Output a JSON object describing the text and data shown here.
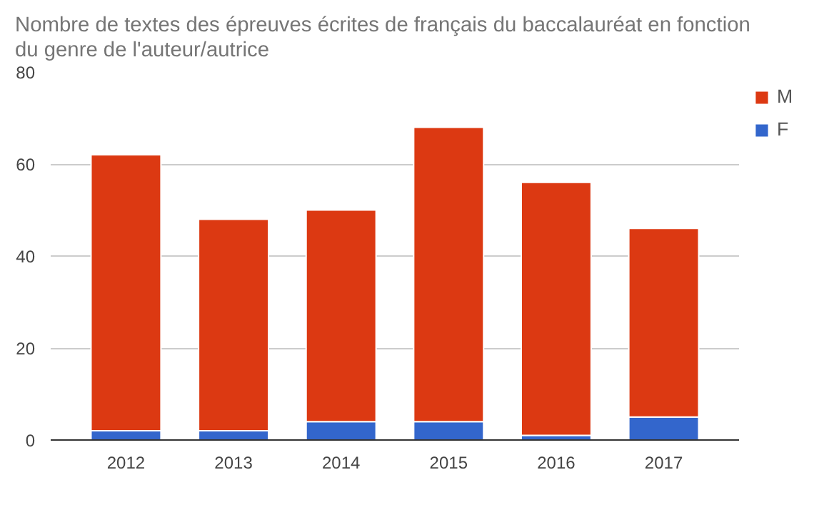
{
  "chart_data": {
    "type": "bar",
    "title": "Nombre de textes des épreuves écrites de français du baccalauréat en fonction\ndu genre de l'auteur/autrice",
    "categories": [
      "2012",
      "2013",
      "2014",
      "2015",
      "2016",
      "2017"
    ],
    "stacked": true,
    "series": [
      {
        "name": "F",
        "color": "#3366cc",
        "values": [
          2,
          2,
          4,
          4,
          1,
          5
        ]
      },
      {
        "name": "M",
        "color": "#dc3912",
        "values": [
          60,
          46,
          46,
          64,
          55,
          41
        ]
      }
    ],
    "ylim": [
      0,
      80
    ],
    "yticks": [
      0,
      20,
      40,
      60,
      80
    ],
    "grid": "y",
    "legend": "top right"
  }
}
